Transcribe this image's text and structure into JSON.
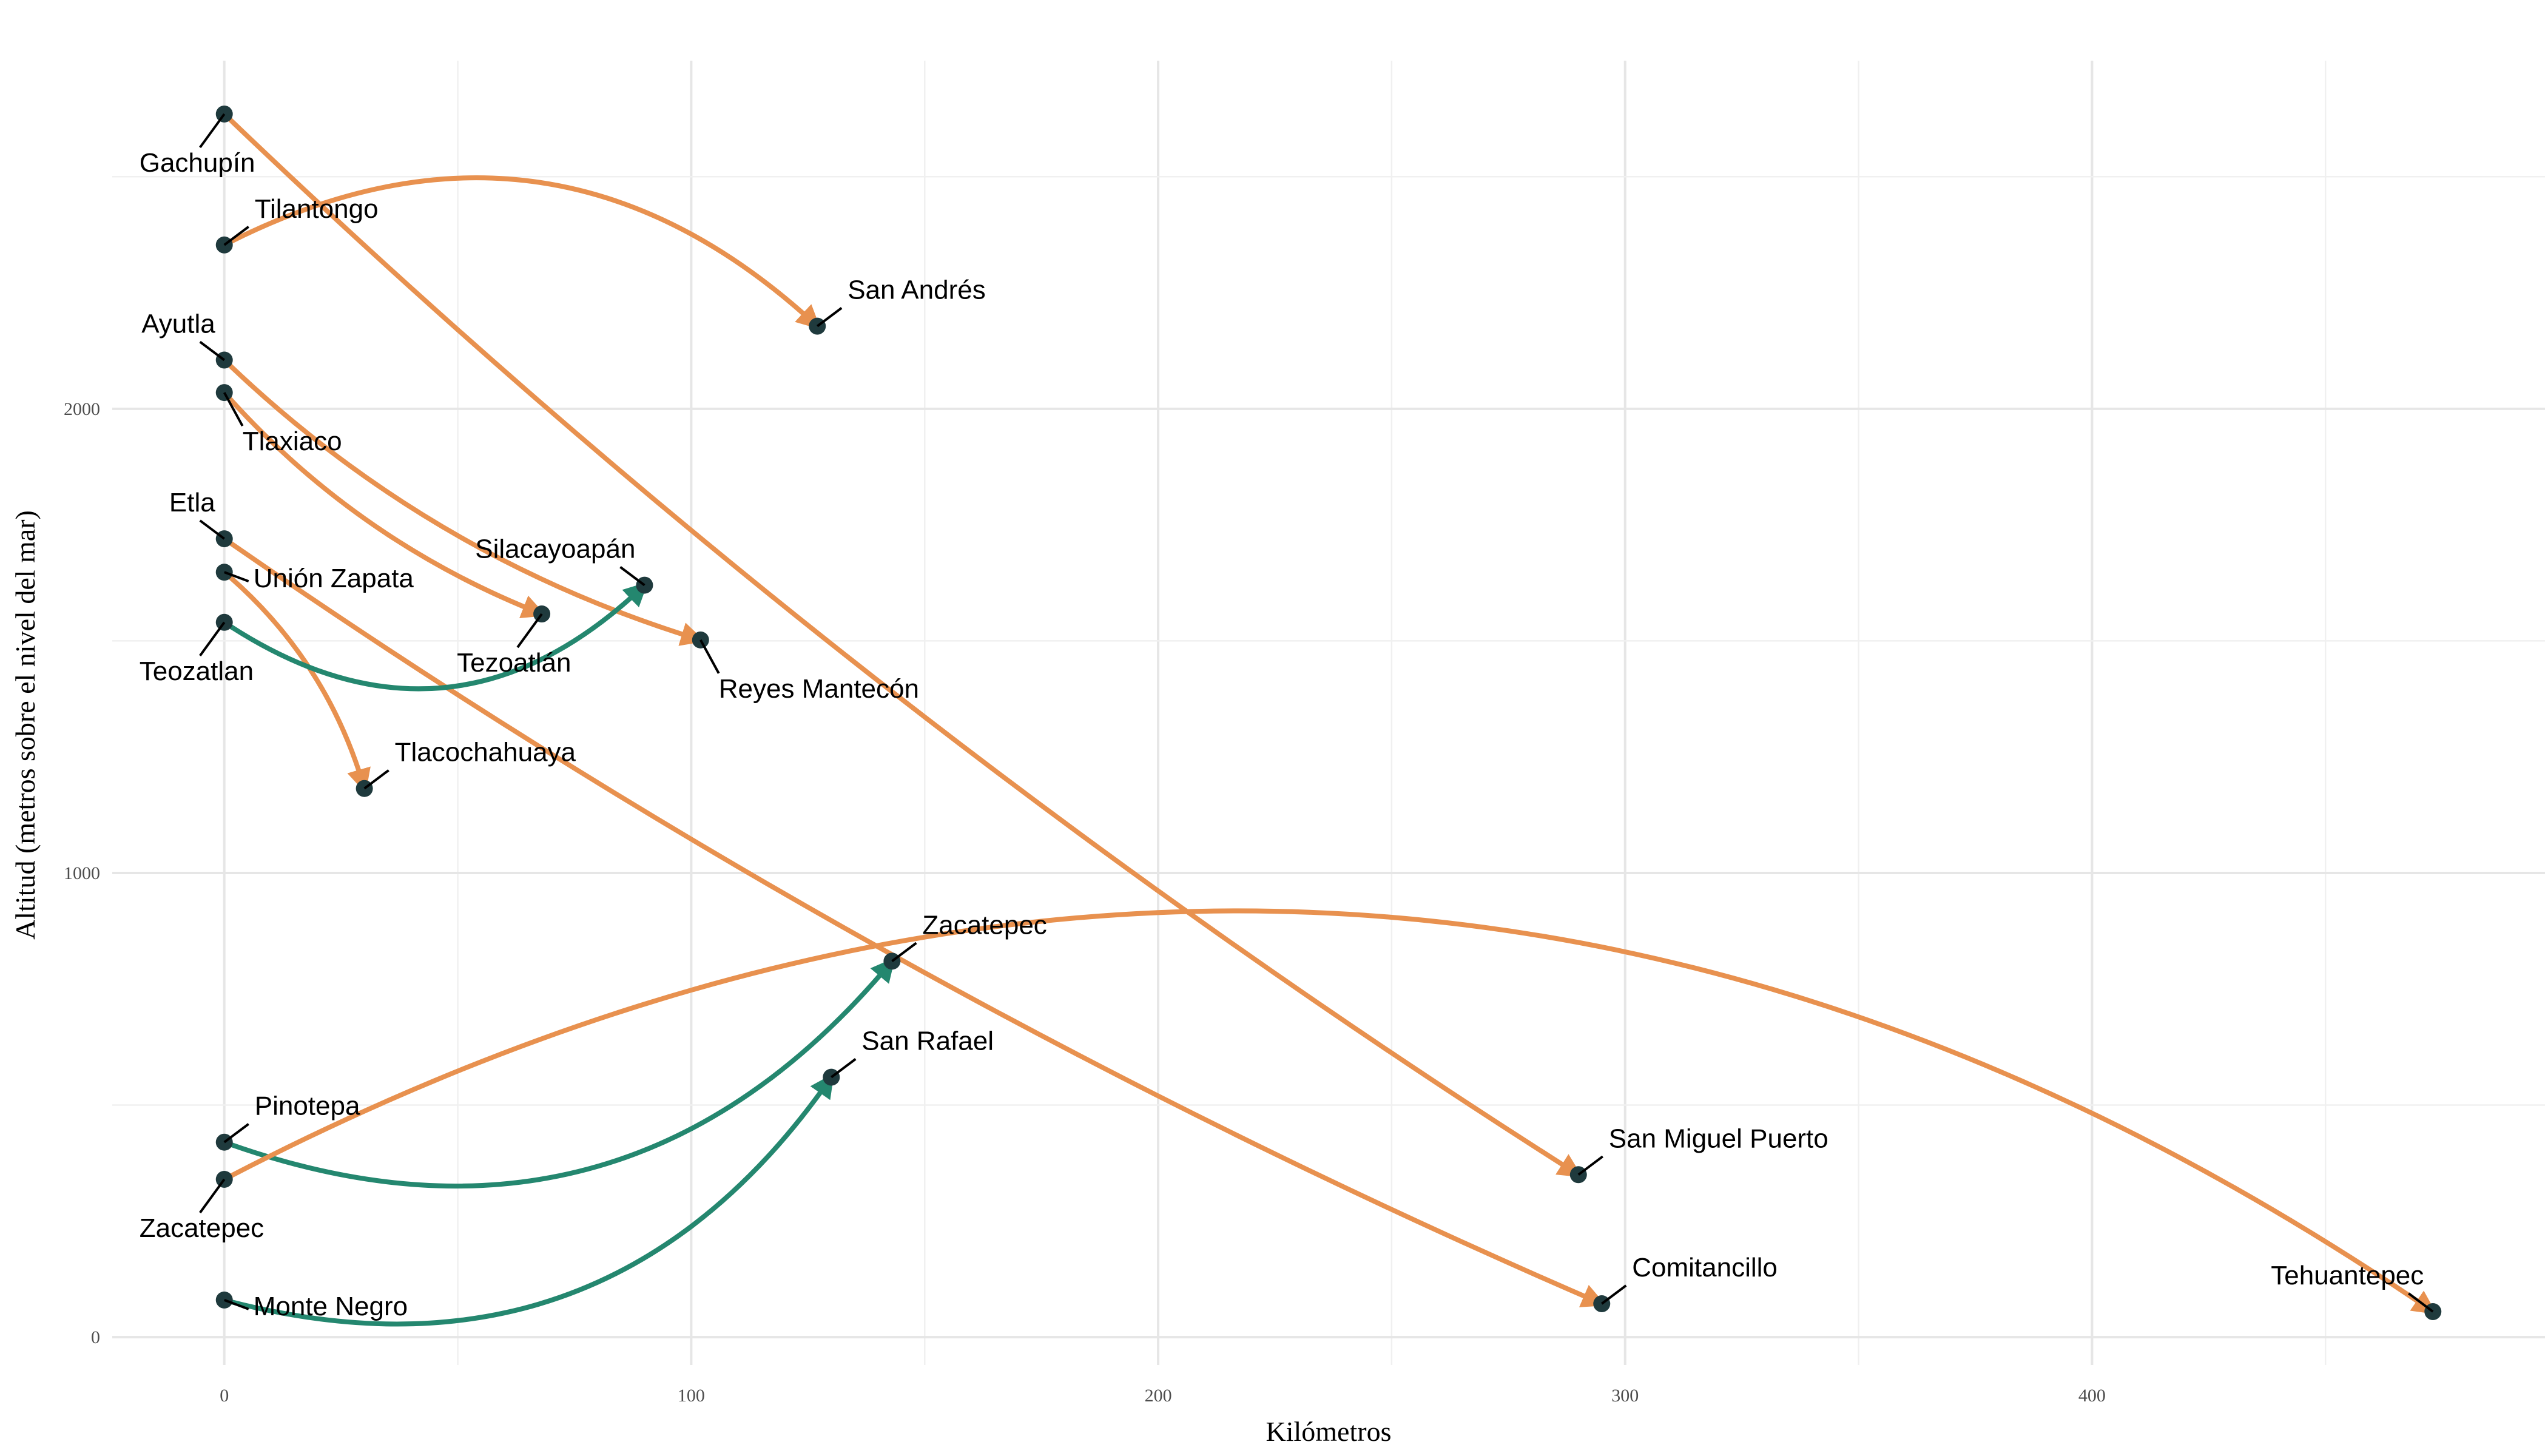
{
  "chart_data": {
    "type": "scatter",
    "xlabel": "Kilómetros",
    "ylabel": "Altitud (metros sobre el nivel del mar)",
    "xlim": [
      -24,
      497
    ],
    "ylim": [
      -60,
      2750
    ],
    "x_ticks": [
      0,
      100,
      200,
      300,
      400
    ],
    "y_ticks": [
      0,
      1000,
      2000
    ],
    "grid": true,
    "colors": {
      "orange": "#e8914f",
      "teal": "#24876f",
      "point": "#1f3a3d"
    },
    "routes": [
      {
        "from": {
          "name": "Gachupín",
          "x": 0,
          "y": 2635
        },
        "to": {
          "name": "San Miguel Puerto",
          "x": 290,
          "y": 350
        },
        "color": "orange",
        "curvature": -0.05
      },
      {
        "from": {
          "name": "Tilantongo",
          "x": 0,
          "y": 2353
        },
        "to": {
          "name": "San Andrés",
          "x": 127,
          "y": 2178
        },
        "color": "orange",
        "curvature": 0.35
      },
      {
        "from": {
          "name": "Ayutla",
          "x": 0,
          "y": 2105
        },
        "to": {
          "name": "Reyes Mantecón",
          "x": 102,
          "y": 1502
        },
        "color": "orange",
        "curvature": -0.12
      },
      {
        "from": {
          "name": "Tlaxiaco",
          "x": 0,
          "y": 2035
        },
        "to": {
          "name": "Tezoatlán",
          "x": 68,
          "y": 1558
        },
        "color": "orange",
        "curvature": -0.12
      },
      {
        "from": {
          "name": "Etla",
          "x": 0,
          "y": 1720
        },
        "to": {
          "name": "Comitancillo",
          "x": 295,
          "y": 72
        },
        "color": "orange",
        "curvature": -0.05
      },
      {
        "from": {
          "name": "Unión Zapata",
          "x": 0,
          "y": 1648
        },
        "to": {
          "name": "Tlacochahuaya",
          "x": 30,
          "y": 1182
        },
        "color": "orange",
        "curvature": 0.15
      },
      {
        "from": {
          "name": "Teozatlan",
          "x": 0,
          "y": 1540
        },
        "to": {
          "name": "Silacayoapán",
          "x": 90,
          "y": 1620
        },
        "color": "teal",
        "curvature": -0.4
      },
      {
        "from": {
          "name": "Pinotepa",
          "x": 0,
          "y": 420
        },
        "to": {
          "name": "Zacatepec",
          "x": 143,
          "y": 810
        },
        "color": "teal",
        "curvature": -0.35
      },
      {
        "from": {
          "name": "Monte Negro",
          "x": 0,
          "y": 80
        },
        "to": {
          "name": "San Rafael",
          "x": 130,
          "y": 560
        },
        "color": "teal",
        "curvature": -0.35
      },
      {
        "from": {
          "name": "Zacatepec",
          "x": 0,
          "y": 340
        },
        "to": {
          "name": "Tehuantepec",
          "x": 473,
          "y": 55
        },
        "color": "orange",
        "curvature": 0.3
      }
    ],
    "labels": [
      {
        "text": "Gachupín",
        "x": 0,
        "y": 2635,
        "pos": "below-left"
      },
      {
        "text": "Tilantongo",
        "x": 0,
        "y": 2353,
        "pos": "above-right"
      },
      {
        "text": "Ayutla",
        "x": 0,
        "y": 2105,
        "pos": "above-left"
      },
      {
        "text": "Tlaxiaco",
        "x": 0,
        "y": 2035,
        "pos": "below-right"
      },
      {
        "text": "Etla",
        "x": 0,
        "y": 1720,
        "pos": "above-left"
      },
      {
        "text": "Unión Zapata",
        "x": 0,
        "y": 1648,
        "pos": "right"
      },
      {
        "text": "Teozatlan",
        "x": 0,
        "y": 1540,
        "pos": "below-left"
      },
      {
        "text": "Pinotepa",
        "x": 0,
        "y": 420,
        "pos": "above-right"
      },
      {
        "text": "Zacatepec",
        "x": 0,
        "y": 340,
        "pos": "below-left"
      },
      {
        "text": "Monte Negro",
        "x": 0,
        "y": 80,
        "pos": "right"
      },
      {
        "text": "San Andrés",
        "x": 127,
        "y": 2178,
        "pos": "above-right"
      },
      {
        "text": "Silacayoapán",
        "x": 90,
        "y": 1620,
        "pos": "above-left"
      },
      {
        "text": "Tezoatlán",
        "x": 68,
        "y": 1558,
        "pos": "below-left"
      },
      {
        "text": "Reyes Mantecón",
        "x": 102,
        "y": 1502,
        "pos": "below-right"
      },
      {
        "text": "Tlacochahuaya",
        "x": 30,
        "y": 1182,
        "pos": "above-right"
      },
      {
        "text": "Zacatepec",
        "x": 143,
        "y": 810,
        "pos": "above-right"
      },
      {
        "text": "San Rafael",
        "x": 130,
        "y": 560,
        "pos": "above-right"
      },
      {
        "text": "San Miguel Puerto",
        "x": 290,
        "y": 350,
        "pos": "above-right"
      },
      {
        "text": "Comitancillo",
        "x": 295,
        "y": 72,
        "pos": "above-right"
      },
      {
        "text": "Tehuantepec",
        "x": 473,
        "y": 55,
        "pos": "above-left"
      }
    ]
  }
}
